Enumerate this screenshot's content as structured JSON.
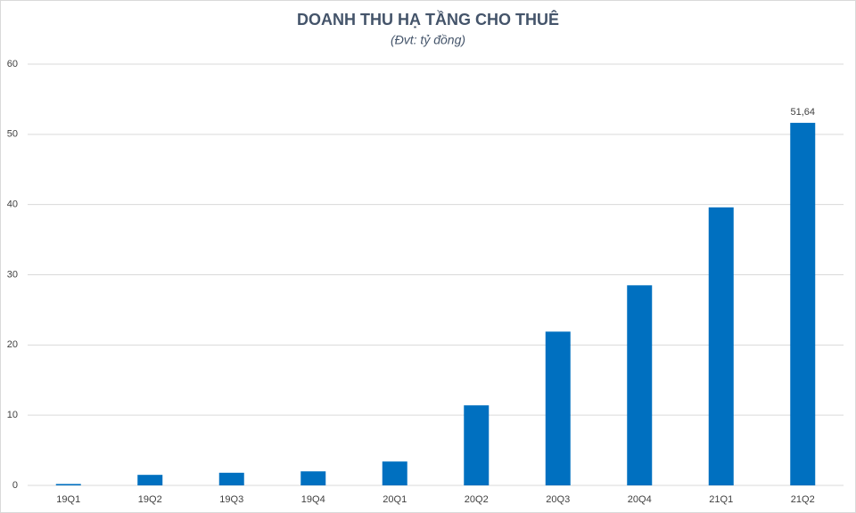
{
  "chart_data": {
    "type": "bar",
    "title": "DOANH THU HẠ TẦNG CHO THUÊ",
    "subtitle": "(Đvt: tỷ đồng)",
    "categories": [
      "19Q1",
      "19Q2",
      "19Q3",
      "19Q4",
      "20Q1",
      "20Q2",
      "20Q3",
      "20Q4",
      "21Q1",
      "21Q2"
    ],
    "values": [
      0.2,
      1.5,
      1.8,
      2.0,
      3.4,
      11.4,
      21.9,
      28.5,
      39.6,
      51.64
    ],
    "value_labels": [
      null,
      null,
      null,
      null,
      null,
      null,
      null,
      null,
      null,
      "51,64"
    ],
    "color": "#0070c0",
    "ylim": [
      0,
      60
    ],
    "yticks": [
      0,
      10,
      20,
      30,
      40,
      50,
      60
    ],
    "grid": true
  }
}
